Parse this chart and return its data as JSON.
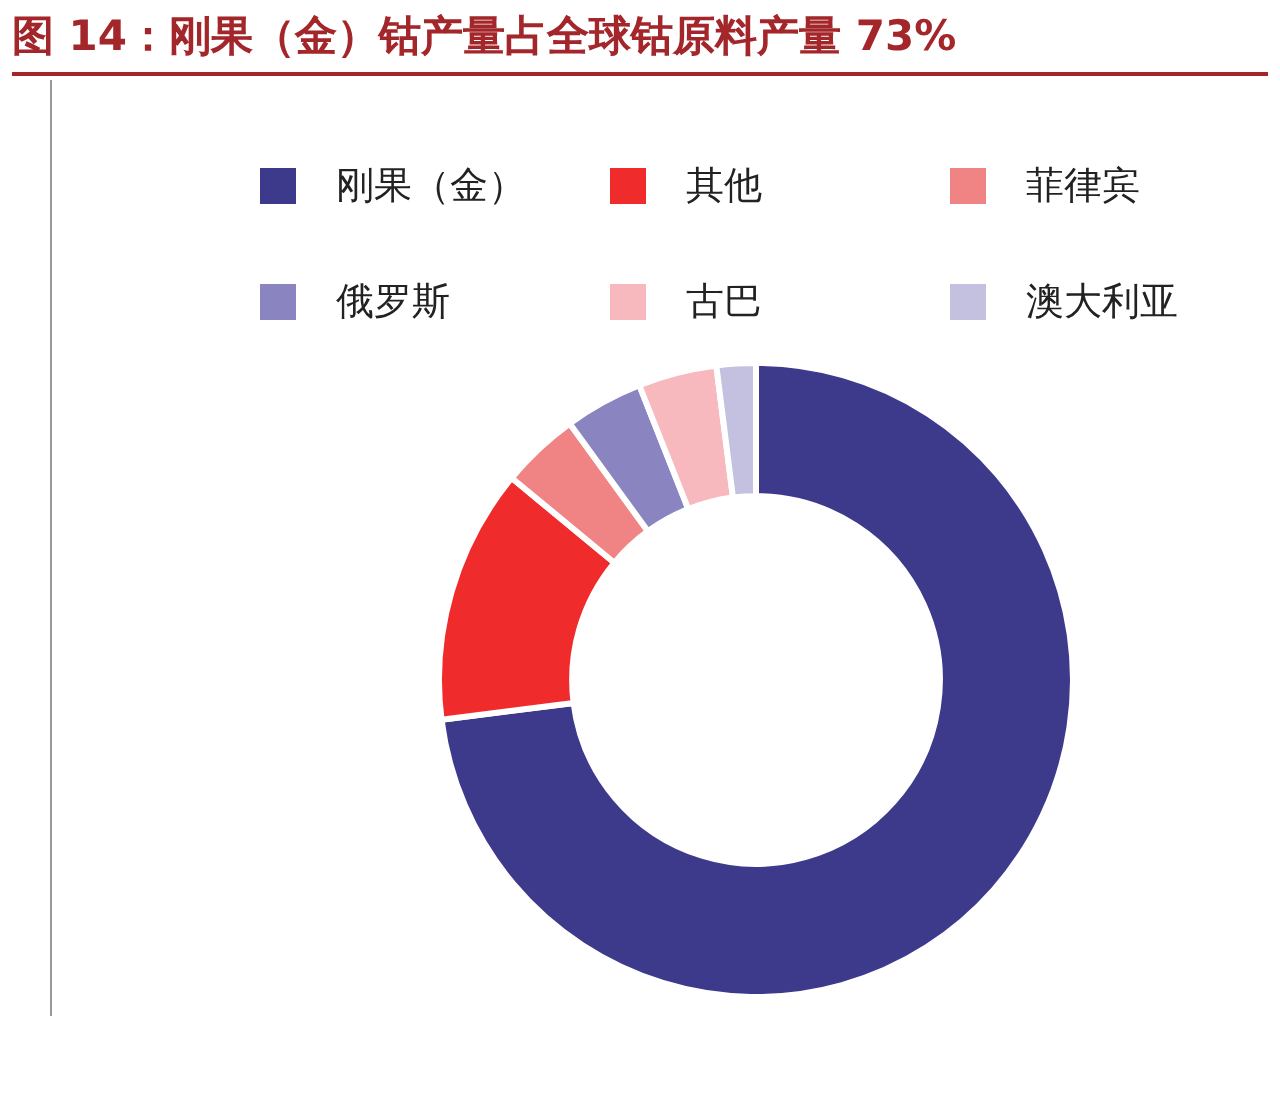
{
  "chart_data": {
    "type": "donut",
    "title": "图 14：刚果（金）钴产量占全球钴原料产量 73%",
    "categories": [
      "刚果（金）",
      "其他",
      "菲律宾",
      "俄罗斯",
      "古巴",
      "澳大利亚"
    ],
    "values": [
      73,
      13,
      4,
      4,
      4,
      2
    ],
    "colors": [
      "#3d3a8c",
      "#f02b2b",
      "#f08383",
      "#8a84c0",
      "#f7b9bd",
      "#c4c1e0"
    ],
    "legend": "top"
  }
}
